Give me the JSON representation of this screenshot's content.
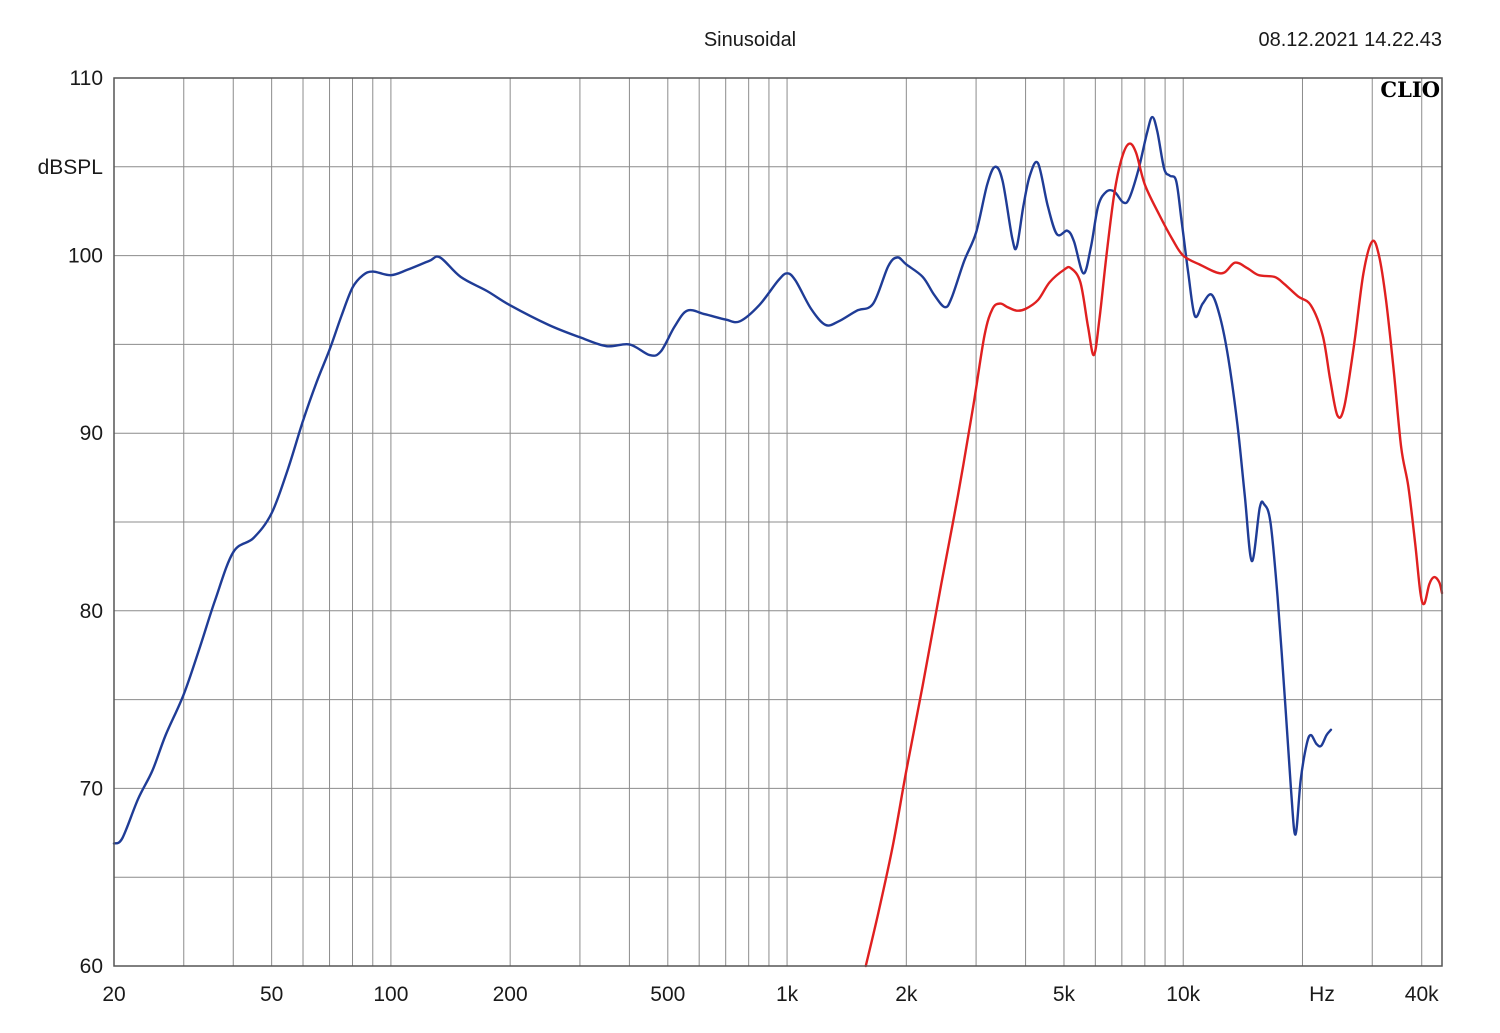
{
  "header": {
    "mode": "Sinusoidal",
    "timestamp": "08.12.2021 14.22.43",
    "brand": "CLIO"
  },
  "colors": {
    "grid": "#8c8c8c",
    "frame": "#555555",
    "series_blue": "#1f3c96",
    "series_red": "#e02020"
  },
  "chart_data": {
    "type": "line",
    "title": "",
    "xlabel": "Hz",
    "ylabel": "dBSPL",
    "x_scale": "log",
    "xlim": [
      20,
      45000
    ],
    "ylim": [
      60,
      110
    ],
    "grid": true,
    "x_ticks": [
      {
        "value": 20,
        "label": "20"
      },
      {
        "value": 50,
        "label": "50"
      },
      {
        "value": 100,
        "label": "100"
      },
      {
        "value": 200,
        "label": "200"
      },
      {
        "value": 500,
        "label": "500"
      },
      {
        "value": 1000,
        "label": "1k"
      },
      {
        "value": 2000,
        "label": "2k"
      },
      {
        "value": 5000,
        "label": "5k"
      },
      {
        "value": 10000,
        "label": "10k"
      },
      {
        "value": 40000,
        "label": "40k"
      }
    ],
    "y_ticks": [
      {
        "value": 60,
        "label": "60"
      },
      {
        "value": 70,
        "label": "70"
      },
      {
        "value": 80,
        "label": "80"
      },
      {
        "value": 90,
        "label": "90"
      },
      {
        "value": 100,
        "label": "100"
      },
      {
        "value": 110,
        "label": "110"
      }
    ],
    "series": [
      {
        "color": "#1f3c96",
        "points": [
          [
            20,
            66.9
          ],
          [
            21,
            67.2
          ],
          [
            23,
            69.4
          ],
          [
            25,
            71.0
          ],
          [
            27,
            73.0
          ],
          [
            30,
            75.3
          ],
          [
            33,
            78.0
          ],
          [
            36,
            80.6
          ],
          [
            40,
            83.3
          ],
          [
            45,
            84.1
          ],
          [
            50,
            85.5
          ],
          [
            55,
            88.0
          ],
          [
            60,
            90.7
          ],
          [
            65,
            92.9
          ],
          [
            70,
            94.7
          ],
          [
            75,
            96.6
          ],
          [
            80,
            98.2
          ],
          [
            85,
            98.9
          ],
          [
            90,
            99.1
          ],
          [
            100,
            98.9
          ],
          [
            110,
            99.2
          ],
          [
            125,
            99.7
          ],
          [
            133,
            99.9
          ],
          [
            150,
            98.8
          ],
          [
            175,
            98.0
          ],
          [
            200,
            97.2
          ],
          [
            250,
            96.1
          ],
          [
            300,
            95.4
          ],
          [
            350,
            94.9
          ],
          [
            400,
            95.0
          ],
          [
            450,
            94.4
          ],
          [
            480,
            94.6
          ],
          [
            520,
            96.0
          ],
          [
            560,
            96.9
          ],
          [
            620,
            96.7
          ],
          [
            700,
            96.4
          ],
          [
            760,
            96.3
          ],
          [
            850,
            97.2
          ],
          [
            950,
            98.6
          ],
          [
            1000,
            99.0
          ],
          [
            1050,
            98.6
          ],
          [
            1150,
            97.0
          ],
          [
            1250,
            96.1
          ],
          [
            1350,
            96.3
          ],
          [
            1500,
            96.9
          ],
          [
            1650,
            97.3
          ],
          [
            1800,
            99.4
          ],
          [
            1900,
            99.9
          ],
          [
            2000,
            99.5
          ],
          [
            2200,
            98.8
          ],
          [
            2350,
            97.8
          ],
          [
            2500,
            97.1
          ],
          [
            2600,
            97.6
          ],
          [
            2800,
            99.7
          ],
          [
            3000,
            101.3
          ],
          [
            3200,
            104.0
          ],
          [
            3350,
            105.0
          ],
          [
            3500,
            104.2
          ],
          [
            3700,
            101.0
          ],
          [
            3800,
            100.5
          ],
          [
            3950,
            102.8
          ],
          [
            4100,
            104.5
          ],
          [
            4300,
            105.2
          ],
          [
            4550,
            102.8
          ],
          [
            4800,
            101.2
          ],
          [
            5100,
            101.4
          ],
          [
            5300,
            100.8
          ],
          [
            5600,
            99.0
          ],
          [
            5850,
            100.5
          ],
          [
            6100,
            102.8
          ],
          [
            6400,
            103.6
          ],
          [
            6700,
            103.6
          ],
          [
            7050,
            103.0
          ],
          [
            7300,
            103.2
          ],
          [
            7700,
            104.8
          ],
          [
            8100,
            106.9
          ],
          [
            8350,
            107.8
          ],
          [
            8600,
            107.0
          ],
          [
            8950,
            104.9
          ],
          [
            9250,
            104.5
          ],
          [
            9600,
            104.2
          ],
          [
            9900,
            102.0
          ],
          [
            10300,
            99.0
          ],
          [
            10700,
            96.6
          ],
          [
            11200,
            97.3
          ],
          [
            11800,
            97.8
          ],
          [
            12400,
            96.5
          ],
          [
            13000,
            94.2
          ],
          [
            13700,
            90.5
          ],
          [
            14300,
            86.5
          ],
          [
            14900,
            82.8
          ],
          [
            15600,
            85.8
          ],
          [
            16000,
            86.0
          ],
          [
            16600,
            85.0
          ],
          [
            17300,
            80.8
          ],
          [
            18100,
            74.7
          ],
          [
            18700,
            70.0
          ],
          [
            19200,
            67.4
          ],
          [
            19800,
            70.5
          ],
          [
            20500,
            72.5
          ],
          [
            21000,
            73.0
          ],
          [
            21700,
            72.5
          ],
          [
            22300,
            72.4
          ],
          [
            23000,
            73.0
          ],
          [
            23600,
            73.3
          ]
        ]
      },
      {
        "color": "#e02020",
        "points": [
          [
            1580,
            60.0
          ],
          [
            1700,
            63.0
          ],
          [
            1850,
            66.8
          ],
          [
            2000,
            71.0
          ],
          [
            2200,
            75.8
          ],
          [
            2450,
            81.5
          ],
          [
            2700,
            86.5
          ],
          [
            2950,
            91.5
          ],
          [
            3150,
            95.5
          ],
          [
            3300,
            97.0
          ],
          [
            3450,
            97.3
          ],
          [
            3600,
            97.1
          ],
          [
            3800,
            96.9
          ],
          [
            4000,
            97.0
          ],
          [
            4300,
            97.5
          ],
          [
            4600,
            98.5
          ],
          [
            5000,
            99.2
          ],
          [
            5200,
            99.3
          ],
          [
            5500,
            98.5
          ],
          [
            5750,
            96.0
          ],
          [
            5950,
            94.4
          ],
          [
            6150,
            96.5
          ],
          [
            6400,
            100.0
          ],
          [
            6700,
            103.5
          ],
          [
            7000,
            105.5
          ],
          [
            7300,
            106.3
          ],
          [
            7600,
            105.8
          ],
          [
            8000,
            104.0
          ],
          [
            8700,
            102.3
          ],
          [
            9400,
            100.9
          ],
          [
            10000,
            100.0
          ],
          [
            11000,
            99.5
          ],
          [
            12500,
            99.0
          ],
          [
            13500,
            99.6
          ],
          [
            14500,
            99.3
          ],
          [
            15500,
            98.9
          ],
          [
            17000,
            98.8
          ],
          [
            18000,
            98.4
          ],
          [
            19500,
            97.7
          ],
          [
            21000,
            97.2
          ],
          [
            22500,
            95.5
          ],
          [
            23500,
            93.0
          ],
          [
            24500,
            91.0
          ],
          [
            25500,
            91.5
          ],
          [
            27000,
            95.0
          ],
          [
            28500,
            99.0
          ],
          [
            30000,
            100.8
          ],
          [
            31200,
            100.0
          ],
          [
            32500,
            97.5
          ],
          [
            34000,
            93.5
          ],
          [
            35500,
            89.2
          ],
          [
            37000,
            87.0
          ],
          [
            38500,
            83.8
          ],
          [
            39700,
            81.0
          ],
          [
            40600,
            80.4
          ],
          [
            41800,
            81.5
          ],
          [
            43000,
            81.9
          ],
          [
            44300,
            81.6
          ],
          [
            45000,
            81.0
          ]
        ]
      }
    ]
  }
}
